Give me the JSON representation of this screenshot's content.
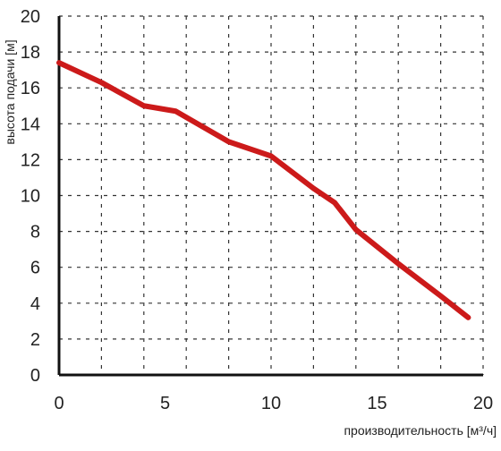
{
  "chart_data": {
    "type": "line",
    "xlabel": "производительность [м³/ч]",
    "ylabel": "высота подачи [м]",
    "xlim": [
      0,
      20
    ],
    "ylim": [
      0,
      20
    ],
    "x_ticks": [
      "0",
      "5",
      "10",
      "15",
      "20"
    ],
    "y_ticks": [
      "0",
      "2",
      "4",
      "6",
      "8",
      "10",
      "12",
      "14",
      "16",
      "18",
      "20"
    ],
    "grid": true,
    "colors": {
      "series": "#cc1a1a",
      "axis": "#111111",
      "grid": "#333333"
    },
    "series": [
      {
        "x": [
          0,
          2,
          4,
          5.5,
          8,
          10,
          12,
          13,
          14,
          16,
          18,
          19.3
        ],
        "values": [
          17.4,
          16.3,
          15.0,
          14.7,
          13.0,
          12.2,
          10.4,
          9.6,
          8.1,
          6.2,
          4.4,
          3.2
        ]
      }
    ]
  }
}
